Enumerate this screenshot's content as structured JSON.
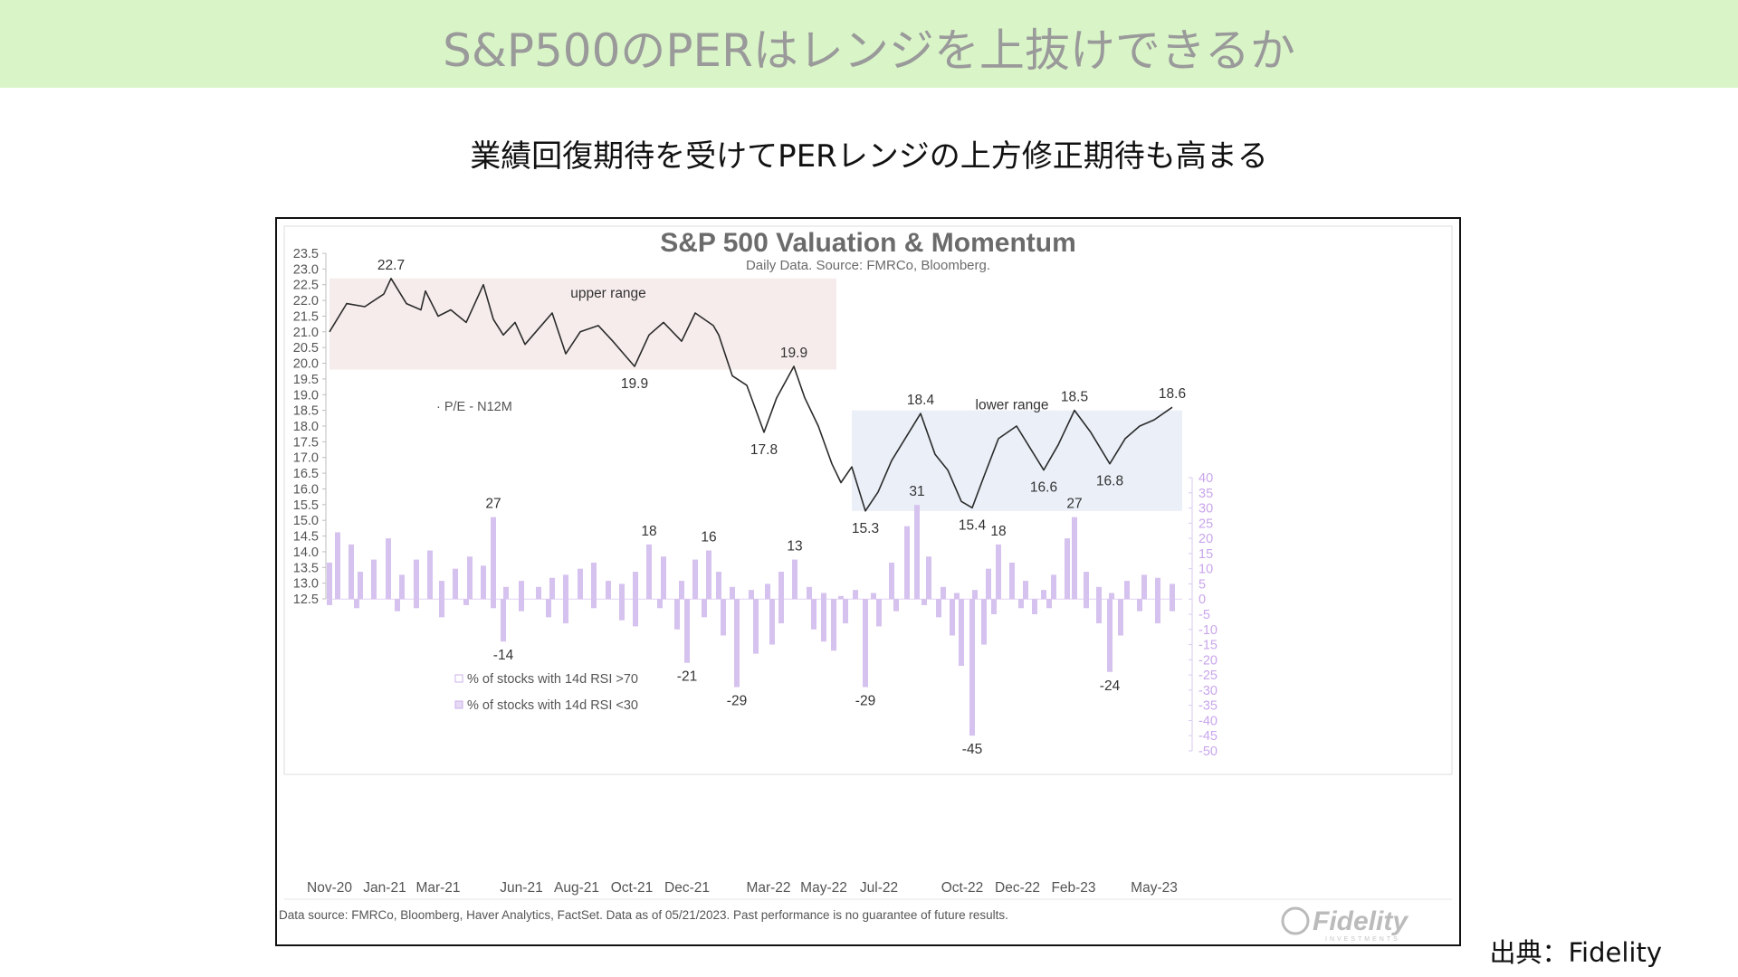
{
  "page": {
    "banner_title": "S&P500のPERはレンジを上抜けできるか",
    "subtitle": "業績回復期待を受けてPERレンジの上方修正期待も高まる",
    "source_label": "出典：Fidelity"
  },
  "colors": {
    "banner_bg": "#d9f5c8",
    "pe_line": "#2b2b2b",
    "rsi_bar": "#d6c2ee",
    "upper_range_fill": "#f6ecec",
    "lower_range_fill": "#eaeff8",
    "text_gray": "#555555"
  },
  "chart_data": {
    "type": "line",
    "title": "S&P 500 Valuation & Momentum",
    "subtitle": "Daily Data.  Source: FMRCo, Bloomberg.",
    "footnote": "Data source: FMRCo, Bloomberg, Haver Analytics, FactSet. Data as of 05/21/2023. Past performance is no guarantee of future results.",
    "logo_text": "Fidelity",
    "logo_subtext": "INVESTMENTS",
    "x_range": [
      "2020-11-01",
      "2023-06-01"
    ],
    "x_ticks": [
      {
        "date": "2020-11-01",
        "label": "Nov-20"
      },
      {
        "date": "2021-01-01",
        "label": "Jan-21"
      },
      {
        "date": "2021-03-01",
        "label": "Mar-21"
      },
      {
        "date": "2021-06-01",
        "label": "Jun-21"
      },
      {
        "date": "2021-08-01",
        "label": "Aug-21"
      },
      {
        "date": "2021-10-01",
        "label": "Oct-21"
      },
      {
        "date": "2021-12-01",
        "label": "Dec-21"
      },
      {
        "date": "2022-03-01",
        "label": "Mar-22"
      },
      {
        "date": "2022-05-01",
        "label": "May-22"
      },
      {
        "date": "2022-07-01",
        "label": "Jul-22"
      },
      {
        "date": "2022-10-01",
        "label": "Oct-22"
      },
      {
        "date": "2022-12-01",
        "label": "Dec-22"
      },
      {
        "date": "2023-02-01",
        "label": "Feb-23"
      },
      {
        "date": "2023-05-01",
        "label": "May-23"
      }
    ],
    "y_left": {
      "label": "",
      "range": [
        12.5,
        23.5
      ],
      "ticks": [
        "23.5",
        "23.0",
        "22.5",
        "22.0",
        "21.5",
        "21.0",
        "20.5",
        "20.0",
        "19.5",
        "19.0",
        "18.5",
        "18.0",
        "17.5",
        "17.0",
        "16.5",
        "16.0",
        "15.5",
        "15.0",
        "14.5",
        "14.0",
        "13.5",
        "13.0",
        "12.5"
      ]
    },
    "y_right": {
      "label": "",
      "range": [
        -50,
        40
      ],
      "ticks": [
        "40",
        "35",
        "30",
        "25",
        "20",
        "15",
        "10",
        "5",
        "0",
        "-5",
        "-10",
        "-15",
        "-20",
        "-25",
        "-30",
        "-35",
        "-40",
        "-45",
        "-50"
      ]
    },
    "ranges": [
      {
        "name": "upper range",
        "start": "2020-11-01",
        "end": "2022-05-15",
        "y_from": 19.8,
        "y_to": 22.7
      },
      {
        "name": "lower range",
        "start": "2022-06-01",
        "end": "2023-06-01",
        "y_from": 15.3,
        "y_to": 18.5
      }
    ],
    "series": [
      {
        "name": "P/E - N12M",
        "axis": "left",
        "points": [
          [
            "2020-11-01",
            21.0
          ],
          [
            "2020-11-20",
            21.9
          ],
          [
            "2020-12-10",
            21.8
          ],
          [
            "2020-12-31",
            22.2
          ],
          [
            "2021-01-08",
            22.7
          ],
          [
            "2021-01-25",
            21.9
          ],
          [
            "2021-02-10",
            21.7
          ],
          [
            "2021-02-15",
            22.3
          ],
          [
            "2021-03-01",
            21.5
          ],
          [
            "2021-03-15",
            21.7
          ],
          [
            "2021-04-01",
            21.3
          ],
          [
            "2021-04-20",
            22.5
          ],
          [
            "2021-05-01",
            21.4
          ],
          [
            "2021-05-12",
            20.9
          ],
          [
            "2021-05-25",
            21.3
          ],
          [
            "2021-06-05",
            20.6
          ],
          [
            "2021-06-20",
            21.1
          ],
          [
            "2021-07-05",
            21.6
          ],
          [
            "2021-07-20",
            20.3
          ],
          [
            "2021-08-05",
            21.0
          ],
          [
            "2021-08-25",
            21.2
          ],
          [
            "2021-09-10",
            20.7
          ],
          [
            "2021-09-25",
            20.2
          ],
          [
            "2021-10-04",
            19.9
          ],
          [
            "2021-10-20",
            20.9
          ],
          [
            "2021-11-05",
            21.3
          ],
          [
            "2021-11-25",
            20.7
          ],
          [
            "2021-12-10",
            21.6
          ],
          [
            "2021-12-30",
            21.2
          ],
          [
            "2022-01-05",
            20.9
          ],
          [
            "2022-01-20",
            19.6
          ],
          [
            "2022-02-05",
            19.3
          ],
          [
            "2022-02-24",
            17.8
          ],
          [
            "2022-03-10",
            18.9
          ],
          [
            "2022-03-29",
            19.9
          ],
          [
            "2022-04-10",
            18.9
          ],
          [
            "2022-04-25",
            18.0
          ],
          [
            "2022-05-10",
            16.8
          ],
          [
            "2022-05-20",
            16.2
          ],
          [
            "2022-06-01",
            16.7
          ],
          [
            "2022-06-16",
            15.3
          ],
          [
            "2022-06-30",
            15.9
          ],
          [
            "2022-07-15",
            16.9
          ],
          [
            "2022-08-16",
            18.4
          ],
          [
            "2022-09-01",
            17.1
          ],
          [
            "2022-09-15",
            16.6
          ],
          [
            "2022-09-30",
            15.6
          ],
          [
            "2022-10-12",
            15.4
          ],
          [
            "2022-10-25",
            16.4
          ],
          [
            "2022-11-10",
            17.6
          ],
          [
            "2022-11-30",
            18.0
          ],
          [
            "2022-12-15",
            17.3
          ],
          [
            "2022-12-30",
            16.6
          ],
          [
            "2023-01-15",
            17.4
          ],
          [
            "2023-02-02",
            18.5
          ],
          [
            "2023-02-20",
            17.8
          ],
          [
            "2023-03-13",
            16.8
          ],
          [
            "2023-03-30",
            17.6
          ],
          [
            "2023-04-15",
            18.0
          ],
          [
            "2023-05-01",
            18.2
          ],
          [
            "2023-05-21",
            18.6
          ]
        ]
      },
      {
        "name": "% of stocks with 14d RSI >70",
        "axis": "right",
        "points": [
          [
            "2020-11-01",
            12
          ],
          [
            "2020-11-10",
            22
          ],
          [
            "2020-11-25",
            18
          ],
          [
            "2020-12-05",
            9
          ],
          [
            "2020-12-20",
            13
          ],
          [
            "2021-01-05",
            20
          ],
          [
            "2021-01-20",
            8
          ],
          [
            "2021-02-05",
            13
          ],
          [
            "2021-02-20",
            16
          ],
          [
            "2021-03-05",
            6
          ],
          [
            "2021-03-20",
            10
          ],
          [
            "2021-04-05",
            14
          ],
          [
            "2021-04-20",
            11
          ],
          [
            "2021-05-01",
            27
          ],
          [
            "2021-05-15",
            4
          ],
          [
            "2021-06-01",
            6
          ],
          [
            "2021-06-20",
            4
          ],
          [
            "2021-07-05",
            7
          ],
          [
            "2021-07-20",
            8
          ],
          [
            "2021-08-05",
            10
          ],
          [
            "2021-08-20",
            12
          ],
          [
            "2021-09-05",
            6
          ],
          [
            "2021-09-20",
            5
          ],
          [
            "2021-10-05",
            9
          ],
          [
            "2021-10-20",
            18
          ],
          [
            "2021-11-05",
            14
          ],
          [
            "2021-11-25",
            6
          ],
          [
            "2021-12-10",
            13
          ],
          [
            "2021-12-25",
            16
          ],
          [
            "2022-01-05",
            9
          ],
          [
            "2022-01-20",
            4
          ],
          [
            "2022-02-10",
            3
          ],
          [
            "2022-02-28",
            5
          ],
          [
            "2022-03-15",
            9
          ],
          [
            "2022-03-30",
            13
          ],
          [
            "2022-04-15",
            4
          ],
          [
            "2022-05-01",
            2
          ],
          [
            "2022-05-20",
            1
          ],
          [
            "2022-06-05",
            3
          ],
          [
            "2022-06-25",
            2
          ],
          [
            "2022-07-15",
            12
          ],
          [
            "2022-08-01",
            24
          ],
          [
            "2022-08-12",
            31
          ],
          [
            "2022-08-25",
            14
          ],
          [
            "2022-09-10",
            4
          ],
          [
            "2022-09-25",
            2
          ],
          [
            "2022-10-15",
            3
          ],
          [
            "2022-10-30",
            10
          ],
          [
            "2022-11-10",
            18
          ],
          [
            "2022-11-25",
            12
          ],
          [
            "2022-12-10",
            6
          ],
          [
            "2022-12-30",
            3
          ],
          [
            "2023-01-10",
            8
          ],
          [
            "2023-01-25",
            20
          ],
          [
            "2023-02-02",
            27
          ],
          [
            "2023-02-15",
            9
          ],
          [
            "2023-03-01",
            4
          ],
          [
            "2023-03-15",
            2
          ],
          [
            "2023-04-01",
            6
          ],
          [
            "2023-04-20",
            8
          ],
          [
            "2023-05-05",
            7
          ],
          [
            "2023-05-21",
            5
          ]
        ]
      },
      {
        "name": "% of stocks with 14d RSI <30",
        "axis": "right",
        "points": [
          [
            "2020-11-01",
            -2
          ],
          [
            "2020-12-01",
            -3
          ],
          [
            "2021-01-15",
            -4
          ],
          [
            "2021-02-05",
            -3
          ],
          [
            "2021-03-05",
            -6
          ],
          [
            "2021-04-01",
            -2
          ],
          [
            "2021-05-01",
            -3
          ],
          [
            "2021-05-12",
            -14
          ],
          [
            "2021-06-01",
            -4
          ],
          [
            "2021-07-01",
            -6
          ],
          [
            "2021-07-20",
            -8
          ],
          [
            "2021-08-20",
            -3
          ],
          [
            "2021-09-20",
            -7
          ],
          [
            "2021-10-05",
            -9
          ],
          [
            "2021-11-01",
            -3
          ],
          [
            "2021-11-20",
            -10
          ],
          [
            "2021-12-01",
            -21
          ],
          [
            "2021-12-20",
            -6
          ],
          [
            "2022-01-10",
            -12
          ],
          [
            "2022-01-25",
            -29
          ],
          [
            "2022-02-15",
            -18
          ],
          [
            "2022-03-05",
            -15
          ],
          [
            "2022-03-15",
            -8
          ],
          [
            "2022-04-20",
            -10
          ],
          [
            "2022-05-01",
            -14
          ],
          [
            "2022-05-12",
            -17
          ],
          [
            "2022-05-25",
            -8
          ],
          [
            "2022-06-16",
            -29
          ],
          [
            "2022-07-01",
            -9
          ],
          [
            "2022-07-20",
            -4
          ],
          [
            "2022-08-20",
            -2
          ],
          [
            "2022-09-05",
            -6
          ],
          [
            "2022-09-20",
            -12
          ],
          [
            "2022-09-30",
            -22
          ],
          [
            "2022-10-12",
            -45
          ],
          [
            "2022-10-25",
            -15
          ],
          [
            "2022-11-05",
            -5
          ],
          [
            "2022-12-05",
            -3
          ],
          [
            "2022-12-20",
            -5
          ],
          [
            "2023-01-05",
            -3
          ],
          [
            "2023-02-15",
            -3
          ],
          [
            "2023-03-01",
            -8
          ],
          [
            "2023-03-13",
            -24
          ],
          [
            "2023-03-25",
            -12
          ],
          [
            "2023-04-15",
            -4
          ],
          [
            "2023-05-05",
            -8
          ],
          [
            "2023-05-21",
            -4
          ]
        ]
      }
    ],
    "annotations": [
      {
        "text": "22.7",
        "date": "2021-01-08",
        "axis": "left",
        "value": 22.7,
        "pos": "above"
      },
      {
        "text": "upper range",
        "date": "2021-09-05",
        "axis": "left",
        "value": 21.8,
        "pos": "above"
      },
      {
        "text": "19.9",
        "date": "2021-10-04",
        "axis": "left",
        "value": 19.9,
        "pos": "below"
      },
      {
        "text": "19.9",
        "date": "2022-03-29",
        "axis": "left",
        "value": 19.9,
        "pos": "above"
      },
      {
        "text": "17.8",
        "date": "2022-02-24",
        "axis": "left",
        "value": 17.8,
        "pos": "below"
      },
      {
        "text": "15.3",
        "date": "2022-06-16",
        "axis": "left",
        "value": 15.3,
        "pos": "below"
      },
      {
        "text": "18.4",
        "date": "2022-08-16",
        "axis": "left",
        "value": 18.4,
        "pos": "above"
      },
      {
        "text": "lower range",
        "date": "2022-11-25",
        "axis": "left",
        "value": 18.25,
        "pos": "above"
      },
      {
        "text": "15.4",
        "date": "2022-10-12",
        "axis": "left",
        "value": 15.4,
        "pos": "below"
      },
      {
        "text": "16.6",
        "date": "2022-12-30",
        "axis": "left",
        "value": 16.6,
        "pos": "below"
      },
      {
        "text": "18.5",
        "date": "2023-02-02",
        "axis": "left",
        "value": 18.5,
        "pos": "above"
      },
      {
        "text": "16.8",
        "date": "2023-03-13",
        "axis": "left",
        "value": 16.8,
        "pos": "below"
      },
      {
        "text": "18.6",
        "date": "2023-05-21",
        "axis": "left",
        "value": 18.6,
        "pos": "above"
      },
      {
        "text": "27",
        "date": "2021-05-01",
        "axis": "right",
        "value": 27,
        "pos": "above"
      },
      {
        "text": "18",
        "date": "2021-10-20",
        "axis": "right",
        "value": 18,
        "pos": "above"
      },
      {
        "text": "16",
        "date": "2021-12-25",
        "axis": "right",
        "value": 16,
        "pos": "above"
      },
      {
        "text": "13",
        "date": "2022-03-30",
        "axis": "right",
        "value": 13,
        "pos": "above"
      },
      {
        "text": "31",
        "date": "2022-08-12",
        "axis": "right",
        "value": 31,
        "pos": "above"
      },
      {
        "text": "18",
        "date": "2022-11-10",
        "axis": "right",
        "value": 18,
        "pos": "above"
      },
      {
        "text": "27",
        "date": "2023-02-02",
        "axis": "right",
        "value": 27,
        "pos": "above"
      },
      {
        "text": "-14",
        "date": "2021-05-12",
        "axis": "right",
        "value": -14,
        "pos": "below"
      },
      {
        "text": "-21",
        "date": "2021-12-01",
        "axis": "right",
        "value": -21,
        "pos": "below"
      },
      {
        "text": "-29",
        "date": "2022-01-25",
        "axis": "right",
        "value": -29,
        "pos": "below"
      },
      {
        "text": "-29",
        "date": "2022-06-16",
        "axis": "right",
        "value": -29,
        "pos": "below"
      },
      {
        "text": "-45",
        "date": "2022-10-12",
        "axis": "right",
        "value": -45,
        "pos": "below"
      },
      {
        "text": "-24",
        "date": "2023-03-13",
        "axis": "right",
        "value": -24,
        "pos": "below"
      }
    ],
    "legend": [
      {
        "text": "· P/E - N12M",
        "placement": "upper-left"
      },
      {
        "text": "% of stocks with 14d RSI >70",
        "placement": "lower-left"
      },
      {
        "text": "% of stocks with 14d RSI <30",
        "placement": "lower-left"
      }
    ],
    "grid": false
  }
}
